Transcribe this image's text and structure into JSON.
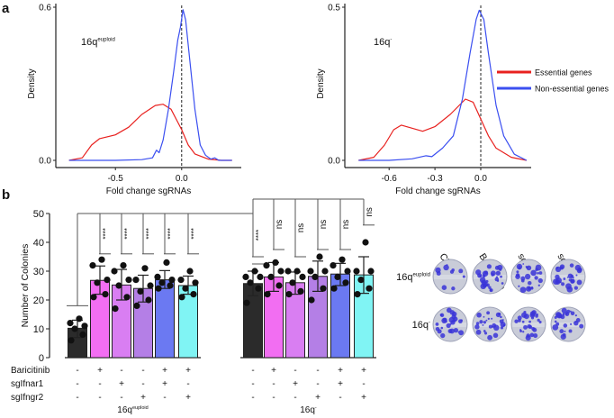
{
  "panels": {
    "a": "a",
    "b": "b"
  },
  "chart_data": [
    {
      "type": "line",
      "panel": "a-left",
      "annotation": {
        "base": "16q",
        "sup": "euploid"
      },
      "xlabel": "Fold change sgRNAs",
      "ylabel": "Density",
      "xlim": [
        -0.95,
        0.45
      ],
      "ylim": [
        0,
        0.6
      ],
      "xticks": [
        {
          "v": -0.5,
          "label": "-0.5"
        },
        {
          "v": 0.0,
          "label": "0.0"
        }
      ],
      "yticks": [
        {
          "v": 0.0,
          "label": "0.0"
        },
        {
          "v": 0.6,
          "label": "0.6"
        }
      ],
      "vline": 0.0,
      "series": [
        {
          "name": "Essential genes",
          "color": "#e8211f",
          "points": [
            [
              -0.85,
              0
            ],
            [
              -0.75,
              0.01
            ],
            [
              -0.68,
              0.06
            ],
            [
              -0.62,
              0.085
            ],
            [
              -0.5,
              0.1
            ],
            [
              -0.4,
              0.13
            ],
            [
              -0.3,
              0.18
            ],
            [
              -0.2,
              0.215
            ],
            [
              -0.14,
              0.22
            ],
            [
              -0.08,
              0.2
            ],
            [
              -0.03,
              0.15
            ],
            [
              0.0,
              0.12
            ],
            [
              0.05,
              0.06
            ],
            [
              0.1,
              0.025
            ],
            [
              0.2,
              0.005
            ],
            [
              0.3,
              0
            ],
            [
              0.38,
              0
            ]
          ]
        },
        {
          "name": "Non-essential genes",
          "color": "#3b4ff0",
          "points": [
            [
              -0.85,
              0
            ],
            [
              -0.5,
              0
            ],
            [
              -0.3,
              0.003
            ],
            [
              -0.22,
              0.01
            ],
            [
              -0.19,
              0.04
            ],
            [
              -0.17,
              0.03
            ],
            [
              -0.14,
              0.08
            ],
            [
              -0.1,
              0.2
            ],
            [
              -0.06,
              0.35
            ],
            [
              -0.03,
              0.47
            ],
            [
              -0.01,
              0.52
            ],
            [
              0.01,
              0.59
            ],
            [
              0.03,
              0.55
            ],
            [
              0.06,
              0.4
            ],
            [
              0.1,
              0.2
            ],
            [
              0.14,
              0.06
            ],
            [
              0.18,
              0.02
            ],
            [
              0.22,
              0.005
            ],
            [
              0.25,
              0.01
            ],
            [
              0.28,
              0
            ],
            [
              0.38,
              0
            ]
          ]
        }
      ]
    },
    {
      "type": "line",
      "panel": "a-right",
      "annotation": {
        "base": "16q",
        "sup": "-"
      },
      "xlabel": "Fold change sgRNAs",
      "ylabel": "Density",
      "xlim": [
        -0.89,
        0.33
      ],
      "ylim": [
        0,
        0.5
      ],
      "xticks": [
        {
          "v": -0.6,
          "label": "-0.6"
        },
        {
          "v": -0.3,
          "label": "-0.3"
        },
        {
          "v": 0.0,
          "label": "0.0"
        }
      ],
      "yticks": [
        {
          "v": 0.0,
          "label": "0.0"
        },
        {
          "v": 0.5,
          "label": "0.5"
        }
      ],
      "vline": 0.0,
      "legend": {
        "position": "right",
        "entries": [
          "Essential genes",
          "Non-essential genes"
        ]
      },
      "series": [
        {
          "name": "Essential genes",
          "color": "#e8211f",
          "points": [
            [
              -0.8,
              0
            ],
            [
              -0.7,
              0.01
            ],
            [
              -0.63,
              0.05
            ],
            [
              -0.57,
              0.1
            ],
            [
              -0.52,
              0.115
            ],
            [
              -0.45,
              0.105
            ],
            [
              -0.38,
              0.095
            ],
            [
              -0.3,
              0.11
            ],
            [
              -0.2,
              0.15
            ],
            [
              -0.1,
              0.2
            ],
            [
              -0.05,
              0.19
            ],
            [
              0.0,
              0.135
            ],
            [
              0.05,
              0.08
            ],
            [
              0.1,
              0.04
            ],
            [
              0.2,
              0.01
            ],
            [
              0.3,
              0
            ]
          ]
        },
        {
          "name": "Non-essential genes",
          "color": "#3b4ff0",
          "points": [
            [
              -0.8,
              0
            ],
            [
              -0.6,
              0
            ],
            [
              -0.45,
              0.005
            ],
            [
              -0.36,
              0.015
            ],
            [
              -0.32,
              0.012
            ],
            [
              -0.25,
              0.04
            ],
            [
              -0.18,
              0.08
            ],
            [
              -0.12,
              0.2
            ],
            [
              -0.07,
              0.35
            ],
            [
              -0.03,
              0.46
            ],
            [
              -0.01,
              0.49
            ],
            [
              0.02,
              0.46
            ],
            [
              0.05,
              0.35
            ],
            [
              0.1,
              0.18
            ],
            [
              0.15,
              0.08
            ],
            [
              0.22,
              0.02
            ],
            [
              0.3,
              0
            ]
          ]
        }
      ]
    },
    {
      "type": "bar",
      "panel": "b",
      "ylabel": "Number of  Colonies",
      "ylim": [
        0,
        50
      ],
      "yticks": [
        0,
        10,
        20,
        30,
        40,
        50
      ],
      "factor_labels": [
        "Baricitinib",
        "sgIfnar1",
        "sgIfngr2"
      ],
      "groups": [
        {
          "label": {
            "base": "16q",
            "sup": "euploid"
          },
          "bars": [
            {
              "color": "#2b2b2b",
              "mean": 10.2,
              "sd_low": 7,
              "sd_high": 13,
              "points": [
                6,
                8,
                10,
                11,
                12,
                13.5
              ],
              "signs": [
                "-",
                "-",
                "-"
              ]
            },
            {
              "color": "#f26ef2",
              "mean": 26.8,
              "sd_low": 22,
              "sd_high": 31.8,
              "points": [
                21,
                22,
                26,
                27,
                32,
                34
              ],
              "signs": [
                "+",
                "-",
                "-"
              ],
              "sig": "****"
            },
            {
              "color": "#d97ef2",
              "mean": 25.2,
              "sd_low": 20,
              "sd_high": 30.6,
              "points": [
                17,
                21,
                25,
                27,
                30,
                32
              ],
              "signs": [
                "-",
                "+",
                "-"
              ],
              "sig": "****"
            },
            {
              "color": "#b47fe6",
              "mean": 24.0,
              "sd_low": 19.3,
              "sd_high": 28.6,
              "points": [
                18,
                20,
                23,
                25,
                27,
                31
              ],
              "signs": [
                "-",
                "-",
                "+"
              ],
              "sig": "****"
            },
            {
              "color": "#6b79f2",
              "mean": 27.0,
              "sd_low": 24,
              "sd_high": 30.2,
              "points": [
                24,
                25,
                26,
                27,
                28,
                33
              ],
              "signs": [
                "+",
                "+",
                "-"
              ],
              "sig": "****"
            },
            {
              "color": "#80f4f4",
              "mean": 25.0,
              "sd_low": 22,
              "sd_high": 28.3,
              "points": [
                21,
                22,
                24,
                26,
                27,
                30
              ],
              "signs": [
                "+",
                "-",
                "+"
              ],
              "sig": "****"
            }
          ]
        },
        {
          "label": {
            "base": "16q",
            "sup": "-"
          },
          "bars": [
            {
              "color": "#2b2b2b",
              "mean": 25.7,
              "sd_low": 21.5,
              "sd_high": 30,
              "points": [
                19,
                24,
                26,
                28,
                28,
                30
              ],
              "signs": [
                "-",
                "-",
                "-"
              ],
              "sig": "****"
            },
            {
              "color": "#f26ef2",
              "mean": 28.0,
              "sd_low": 23,
              "sd_high": 33,
              "points": [
                22,
                25,
                28,
                30,
                32,
                33
              ],
              "signs": [
                "+",
                "-",
                "-"
              ],
              "sig": "ns"
            },
            {
              "color": "#d97ef2",
              "mean": 26.0,
              "sd_low": 22,
              "sd_high": 29.7,
              "points": [
                22,
                23,
                26,
                28,
                30,
                30
              ],
              "signs": [
                "-",
                "+",
                "-"
              ],
              "sig": "ns"
            },
            {
              "color": "#b47fe6",
              "mean": 28.2,
              "sd_low": 23,
              "sd_high": 33.5,
              "points": [
                20,
                24,
                28,
                30,
                30,
                35
              ],
              "signs": [
                "-",
                "-",
                "+"
              ],
              "sig": "ns"
            },
            {
              "color": "#6b79f2",
              "mean": 29.0,
              "sd_low": 25,
              "sd_high": 32.7,
              "points": [
                24,
                26,
                28,
                30,
                32,
                34
              ],
              "signs": [
                "+",
                "+",
                "-"
              ],
              "sig": "ns"
            },
            {
              "color": "#80f4f4",
              "mean": 28.7,
              "sd_low": 22.3,
              "sd_high": 35,
              "points": [
                22,
                24,
                27,
                30,
                30,
                40
              ],
              "signs": [
                "+",
                "-",
                "+"
              ],
              "sig": "ns"
            }
          ]
        }
      ]
    }
  ],
  "colony_panel": {
    "columns": [
      "CTR",
      "Baricitinib",
      "sgIfnar1",
      "sgIfngr2"
    ],
    "rows": [
      {
        "base": "16q",
        "sup": "euploid"
      },
      {
        "base": "16q",
        "sup": "-"
      }
    ],
    "colors": {
      "stain": "#3a34d8",
      "plate": "#c9ccd8"
    }
  }
}
